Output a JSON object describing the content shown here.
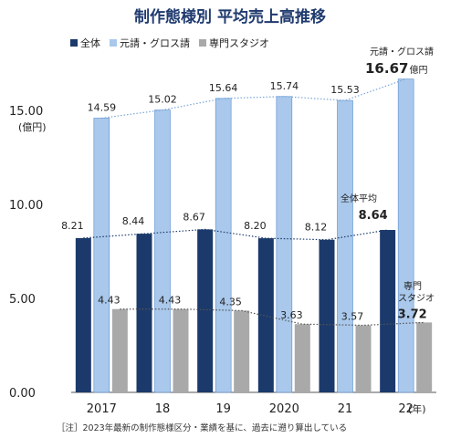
{
  "chart_data": {
    "type": "bar",
    "title": "制作態様別 平均売上高推移",
    "categories": [
      "2017",
      "18",
      "19",
      "2020",
      "21",
      "22"
    ],
    "x_unit": "(年)",
    "y_ticks": [
      "15.00",
      "10.00",
      "5.00",
      "0.00"
    ],
    "y_unit": "(億円)",
    "ylim": [
      0,
      17
    ],
    "legend_position": "top",
    "series": [
      {
        "name": "全体",
        "color": "#1b3a6b",
        "values": [
          8.21,
          8.44,
          8.67,
          8.2,
          8.12,
          8.64
        ],
        "labels": [
          "8.21",
          "8.44",
          "8.67",
          "8.20",
          "8.12",
          "8.64"
        ]
      },
      {
        "name": "元請・グロス請",
        "color": "#a9c8eb",
        "values": [
          14.59,
          15.02,
          15.64,
          15.74,
          15.53,
          16.67
        ],
        "labels": [
          "14.59",
          "15.02",
          "15.64",
          "15.74",
          "15.53",
          "16.67"
        ]
      },
      {
        "name": "専門スタジオ",
        "color": "#a9a9a9",
        "values": [
          4.43,
          4.43,
          4.35,
          3.63,
          3.57,
          3.72
        ],
        "labels": [
          "4.43",
          "4.43",
          "4.35",
          "3.63",
          "3.57",
          "3.72"
        ]
      }
    ],
    "annotations": {
      "gross_name": "元請・グロス請",
      "gross_unit": "億円",
      "total_name": "全体平均",
      "studio_name_1": "専門",
      "studio_name_2": "スタジオ"
    },
    "footnote": "［注］2023年最新の制作態様区分・業績を基に、過去に遡り算出している",
    "trend_lines": "dotted"
  }
}
